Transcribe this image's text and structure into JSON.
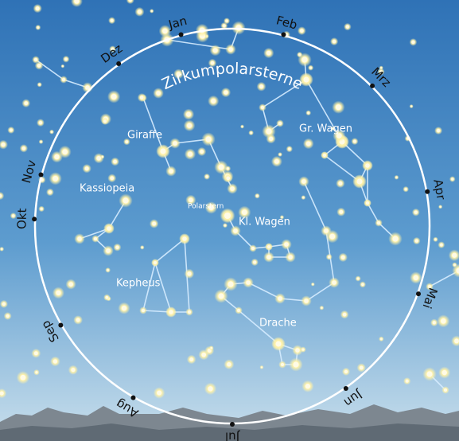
{
  "map": {
    "title": "Zirkumpolarsterne",
    "months": [
      "Jan",
      "Feb",
      "Mrz",
      "Apr",
      "Mai",
      "Jun",
      "Jul",
      "Aug",
      "Sep",
      "Okt",
      "Nov",
      "Dez"
    ],
    "constellations": [
      "Giraffe",
      "Gr. Wagen",
      "Kassiopeia",
      "Kl. Wagen",
      "Kepheus",
      "Drache"
    ],
    "star": "Polarstern"
  }
}
